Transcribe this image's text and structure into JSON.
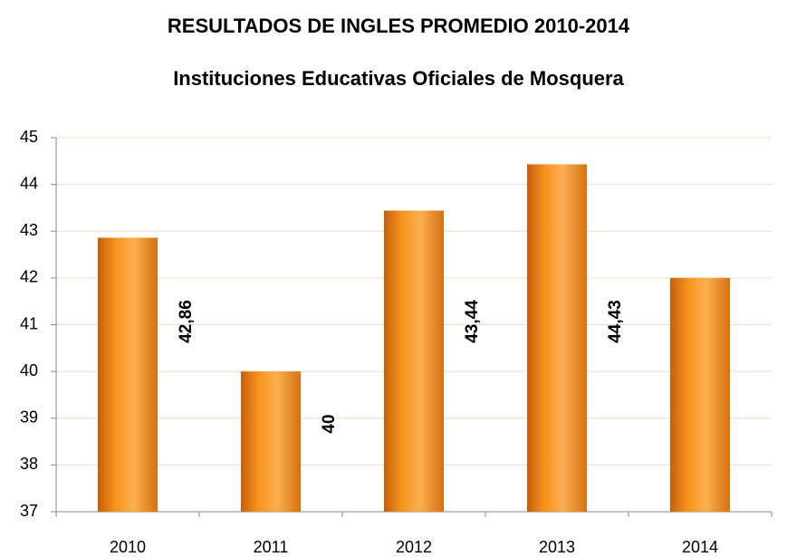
{
  "chart_data": {
    "type": "bar",
    "title": "RESULTADOS DE INGLES PROMEDIO 2010-2014",
    "subtitle": "Instituciones Educativas Oficiales de Mosquera",
    "categories": [
      "2010",
      "2011",
      "2012",
      "2013",
      "2014"
    ],
    "values": [
      42.86,
      40,
      43.44,
      44.43,
      42
    ],
    "value_labels": [
      "42,86",
      "40",
      "43,44",
      "44,43",
      null
    ],
    "color": "#f7941d",
    "ylim": [
      37,
      45
    ],
    "yticks": [
      37,
      38,
      39,
      40,
      41,
      42,
      43,
      44,
      45
    ],
    "grid": true
  }
}
